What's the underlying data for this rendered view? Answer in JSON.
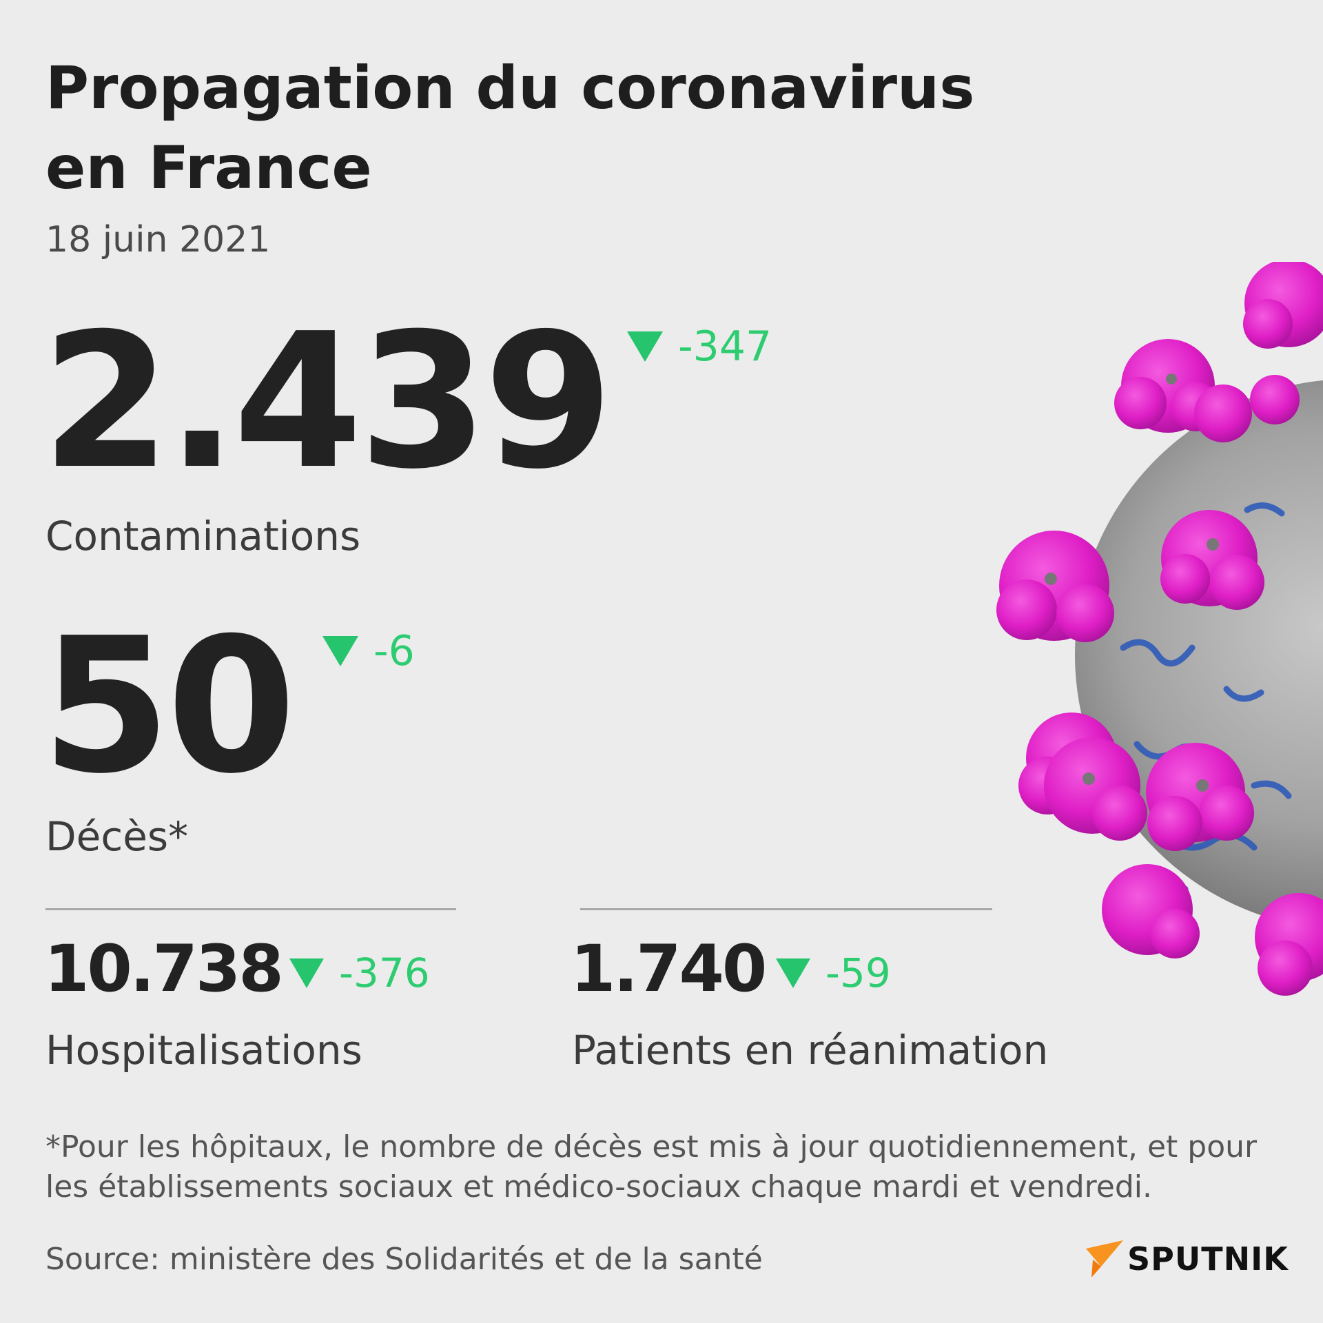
{
  "title": "Propagation du coronavirus en France",
  "date": "18 juin 2021",
  "contaminations": {
    "value": "2.439",
    "delta": "-347",
    "label": "Contaminations"
  },
  "deces": {
    "value": "50",
    "delta": "-6",
    "label": "Décès*"
  },
  "hospitalisations": {
    "value": "10.738",
    "delta": "-376",
    "label": "Hospitalisations"
  },
  "reanimation": {
    "value": "1.740",
    "delta": "-59",
    "label": "Patients en réanimation"
  },
  "footnote": "*Pour les hôpitaux, le nombre de décès est mis à jour quotidiennement, et pour les établissements sociaux et médico-sociaux chaque mardi et vendredi.",
  "source": "Source: ministère des Solidarités et de la santé",
  "brand": "SPUTNIK",
  "colors": {
    "background": "#ececec",
    "delta_green": "#27c46e",
    "virus_spike": "#e020c8",
    "virus_body": "#9a9a9a",
    "virus_strand": "#3a63b8",
    "brand_orange": "#f7931e"
  },
  "icons": {
    "delta": "triangle-down-icon",
    "logo": "sputnik-logo",
    "illustration": "coronavirus-illustration"
  }
}
